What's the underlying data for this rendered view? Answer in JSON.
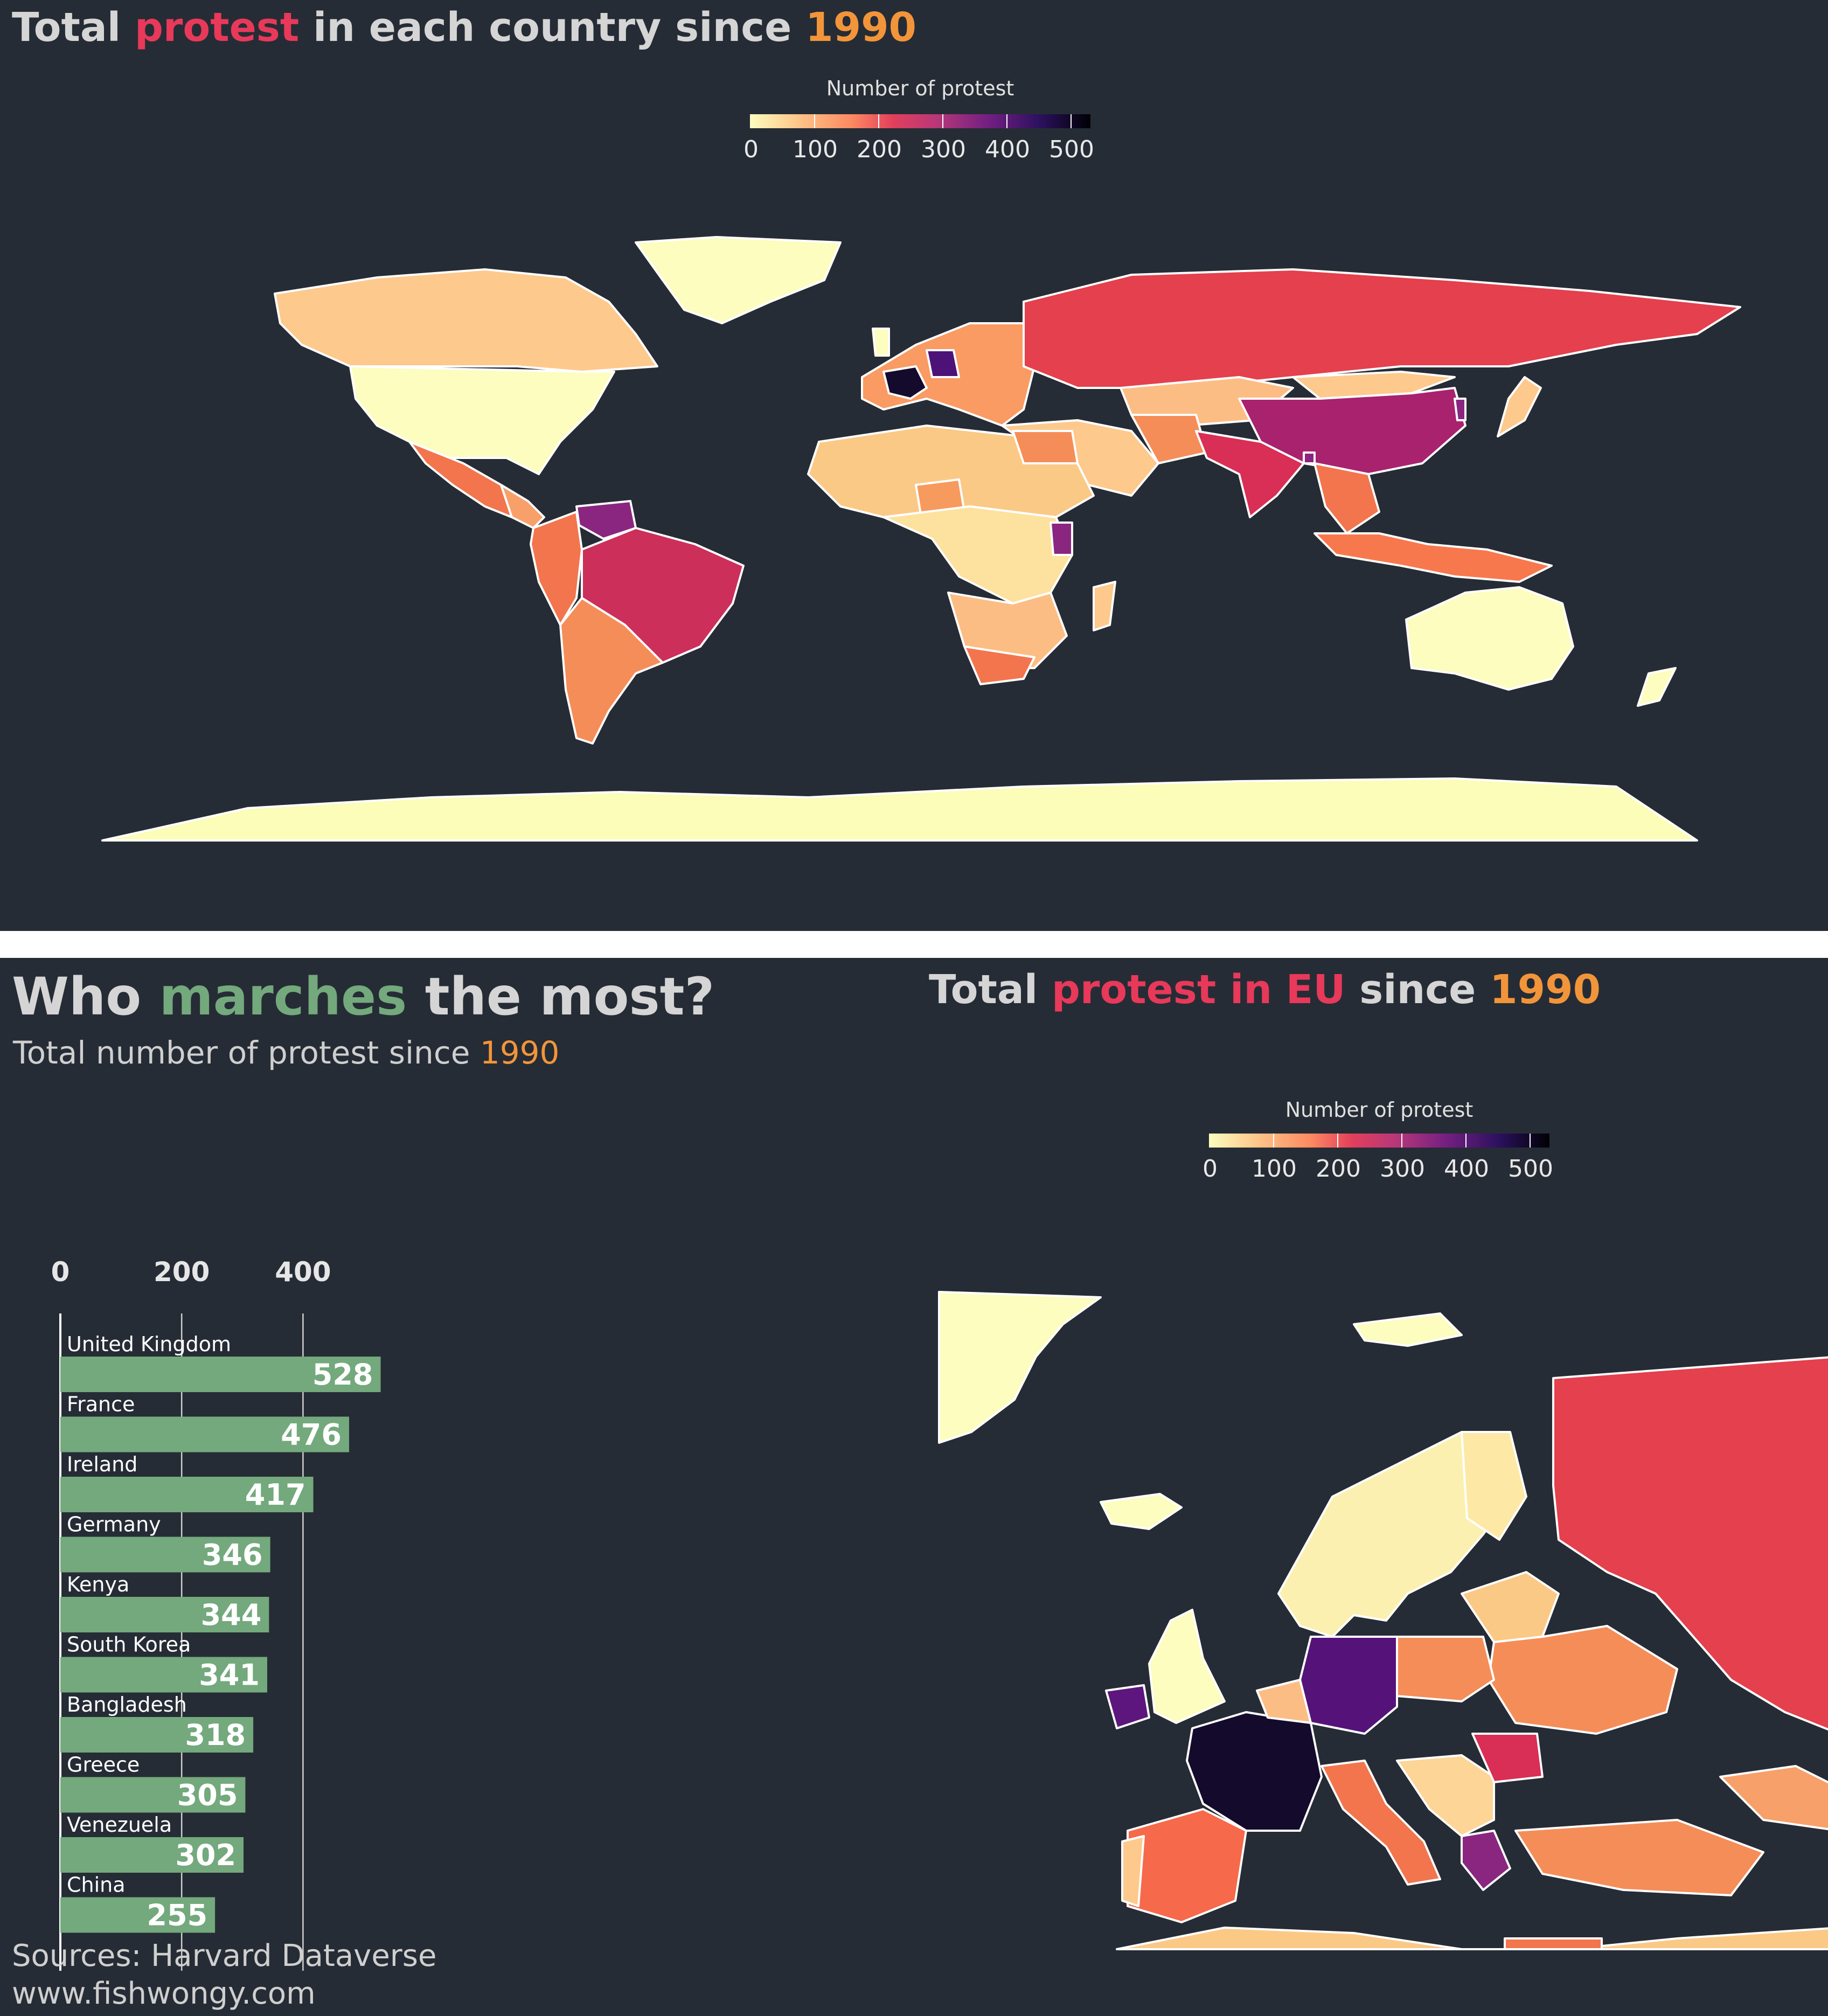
{
  "world_map": {
    "title_parts": [
      "Total ",
      "protest",
      " in each country since ",
      "1990"
    ],
    "legend_title": "Number of protest",
    "legend_ticks": [
      "0",
      "100",
      "200",
      "300",
      "400",
      "500"
    ]
  },
  "bar_chart": {
    "title_parts": [
      "Who ",
      "marches",
      " the most?"
    ],
    "subtitle_parts": [
      "Total number of protest since ",
      "1990"
    ]
  },
  "eu_map": {
    "title_parts": [
      "Total ",
      "protest in EU",
      " since ",
      "1990"
    ],
    "legend_title": "Number of protest",
    "legend_ticks": [
      "0",
      "100",
      "200",
      "300",
      "400",
      "500"
    ]
  },
  "sources": {
    "line1": "Sources: Harvard Dataverse",
    "line2": "www.fishwongy.com"
  },
  "colors": {
    "background": "#262c35",
    "bar": "#73a97c",
    "accent_red": "#e8395a",
    "accent_orange": "#f2953a",
    "accent_green": "#73a97c"
  },
  "chart_data": [
    {
      "type": "bar",
      "orientation": "horizontal",
      "categories": [
        "United Kingdom",
        "France",
        "Ireland",
        "Germany",
        "Kenya",
        "South Korea",
        "Bangladesh",
        "Greece",
        "Venezuela",
        "China"
      ],
      "values": [
        528,
        476,
        417,
        346,
        344,
        341,
        318,
        305,
        302,
        255
      ],
      "xticks": [
        "0",
        "200",
        "400"
      ],
      "xlim": [
        0,
        540
      ],
      "grid": true
    }
  ]
}
